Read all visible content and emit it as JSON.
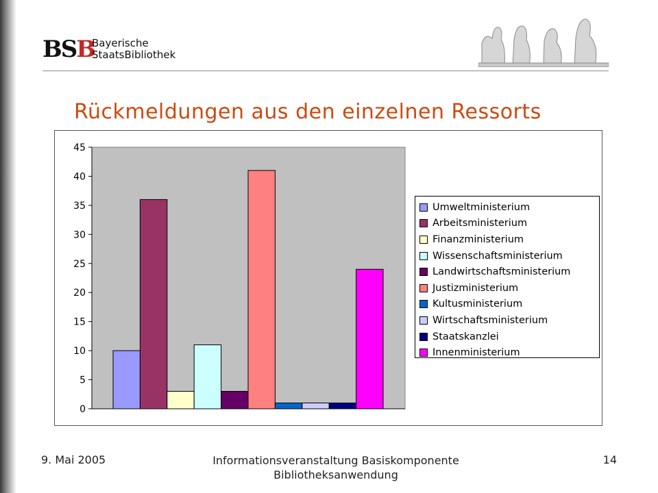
{
  "header": {
    "logo_mark": "BSB",
    "logo_line1": "Bayerische",
    "logo_line2": "StaatsBibliothek"
  },
  "colors": {
    "title": "#cc4a10",
    "plot_background": "#c0c0c0"
  },
  "chart_data": {
    "type": "bar",
    "title": "Rückmeldungen aus den einzelnen Ressorts",
    "xlabel": "",
    "ylabel": "",
    "ylim": [
      0,
      45
    ],
    "yticks": [
      "0",
      "5",
      "10",
      "15",
      "20",
      "25",
      "30",
      "35",
      "40",
      "45"
    ],
    "grid": false,
    "legend_position": "right",
    "series": [
      {
        "name": "Umweltministerium",
        "value": 10,
        "color": "#9999ff"
      },
      {
        "name": "Arbeitsministerium",
        "value": 36,
        "color": "#993366"
      },
      {
        "name": "Finanzministerium",
        "value": 3,
        "color": "#ffffcc"
      },
      {
        "name": "Wissenschaftsministerium",
        "value": 11,
        "color": "#ccffff"
      },
      {
        "name": "Landwirtschaftsministerium",
        "value": 3,
        "color": "#660066"
      },
      {
        "name": "Justizministerium",
        "value": 41,
        "color": "#ff8080"
      },
      {
        "name": "Kultusministerium",
        "value": 1,
        "color": "#0066cc"
      },
      {
        "name": "Wirtschaftsministerium",
        "value": 1,
        "color": "#ccccff"
      },
      {
        "name": "Staatskanzlei",
        "value": 1,
        "color": "#000080"
      },
      {
        "name": "Innenministerium",
        "value": 24,
        "color": "#ff00ff"
      }
    ]
  },
  "footer": {
    "date": "9. Mai 2005",
    "center_line1": "Informationsveranstaltung Basiskomponente",
    "center_line2": "Bibliotheksanwendung",
    "page_number": "14"
  }
}
